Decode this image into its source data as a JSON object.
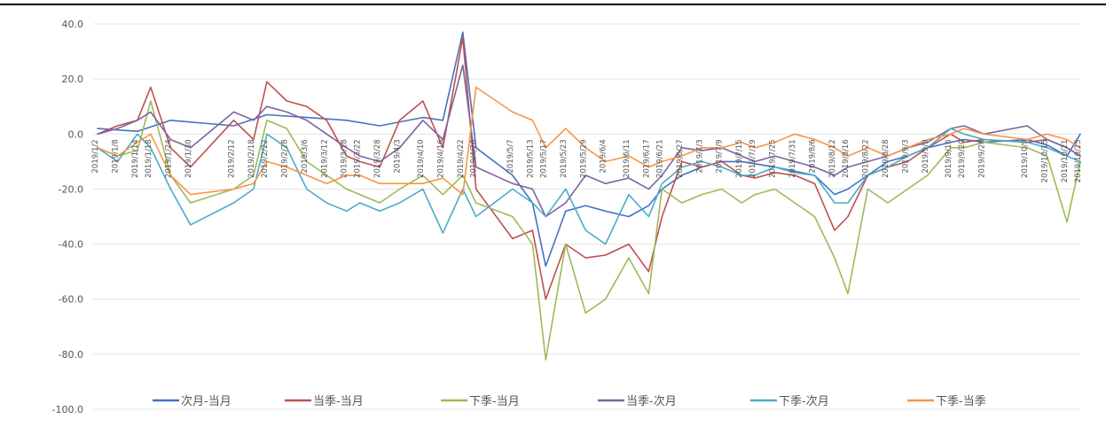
{
  "chart_data": {
    "type": "line",
    "title": "",
    "xlabel": "",
    "ylabel": "",
    "ylim": [
      -100,
      40
    ],
    "yticks": [
      "40.0",
      "20.0",
      "0.0",
      "-20.0",
      "-40.0",
      "-60.0",
      "-80.0",
      "-100.0"
    ],
    "ytick_values": [
      40,
      20,
      0,
      -20,
      -40,
      -60,
      -80,
      -100
    ],
    "grid": "horizontal",
    "legend_position": "bottom",
    "x_start": "2019/1/2",
    "x_end": "2019/10/25",
    "x_labels": [
      "2019/1/2",
      "2019/1/8",
      "2019/1/14",
      "2019/1/18",
      "2019/1/24",
      "2019/1/30",
      "2019/2/12",
      "2019/2/18",
      "2019/2/22",
      "2019/2/28",
      "2019/3/6",
      "2019/3/12",
      "2019/3/18",
      "2019/3/22",
      "2019/3/28",
      "2019/4/3",
      "2019/4/10",
      "2019/4/16",
      "2019/4/22",
      "2019/4/26",
      "2019/5/7",
      "2019/5/13",
      "2019/5/17",
      "2019/5/23",
      "2019/5/29",
      "2019/6/4",
      "2019/6/11",
      "2019/6/17",
      "2019/6/21",
      "2019/6/27",
      "2019/7/3",
      "2019/7/9",
      "2019/7/15",
      "2019/7/19",
      "2019/7/25",
      "2019/7/31",
      "2019/8/6",
      "2019/8/12",
      "2019/8/16",
      "2019/8/22",
      "2019/8/28",
      "2019/9/3",
      "2019/9/9",
      "2019/9/16",
      "2019/9/20",
      "2019/9/26",
      "2019/10/9",
      "2019/10/15",
      "2019/10/21",
      "2019/10/25"
    ],
    "series": [
      {
        "name": "次月-当月",
        "color": "#4472c4",
        "x": [
          "2019/1/2",
          "2019/1/14",
          "2019/1/24",
          "2019/2/12",
          "2019/2/22",
          "2019/3/6",
          "2019/3/18",
          "2019/3/28",
          "2019/4/10",
          "2019/4/16",
          "2019/4/22",
          "2019/4/26",
          "2019/5/7",
          "2019/5/13",
          "2019/5/17",
          "2019/5/23",
          "2019/5/29",
          "2019/6/4",
          "2019/6/11",
          "2019/6/17",
          "2019/6/21",
          "2019/6/27",
          "2019/7/3",
          "2019/7/9",
          "2019/7/15",
          "2019/7/25",
          "2019/8/6",
          "2019/8/12",
          "2019/8/16",
          "2019/8/22",
          "2019/8/28",
          "2019/9/3",
          "2019/9/9",
          "2019/9/16",
          "2019/9/20",
          "2019/9/26",
          "2019/10/9",
          "2019/10/15",
          "2019/10/21",
          "2019/10/25"
        ],
        "values": [
          2,
          1,
          5,
          3,
          7,
          6,
          5,
          3,
          6,
          5,
          37,
          -5,
          -15,
          -25,
          -48,
          -28,
          -26,
          -28,
          -30,
          -26,
          -20,
          -15,
          -12,
          -10,
          -10,
          -12,
          -15,
          -22,
          -20,
          -15,
          -10,
          -8,
          -5,
          -3,
          -2,
          -3,
          -2,
          -4,
          -8,
          0
        ]
      },
      {
        "name": "当季-当月",
        "color": "#c0504d",
        "x": [
          "2019/1/2",
          "2019/1/8",
          "2019/1/14",
          "2019/1/18",
          "2019/1/24",
          "2019/1/30",
          "2019/2/12",
          "2019/2/18",
          "2019/2/22",
          "2019/2/28",
          "2019/3/6",
          "2019/3/12",
          "2019/3/18",
          "2019/3/22",
          "2019/3/28",
          "2019/4/3",
          "2019/4/10",
          "2019/4/16",
          "2019/4/22",
          "2019/4/26",
          "2019/5/7",
          "2019/5/13",
          "2019/5/17",
          "2019/5/23",
          "2019/5/29",
          "2019/6/4",
          "2019/6/11",
          "2019/6/17",
          "2019/6/21",
          "2019/6/27",
          "2019/7/3",
          "2019/7/9",
          "2019/7/15",
          "2019/7/19",
          "2019/7/25",
          "2019/7/31",
          "2019/8/6",
          "2019/8/12",
          "2019/8/16",
          "2019/8/22",
          "2019/8/28",
          "2019/9/3",
          "2019/9/9",
          "2019/9/16",
          "2019/9/20",
          "2019/9/26",
          "2019/10/9",
          "2019/10/15",
          "2019/10/21",
          "2019/10/25"
        ],
        "values": [
          0,
          3,
          5,
          17,
          -5,
          -12,
          5,
          -2,
          19,
          12,
          10,
          5,
          -8,
          -10,
          -12,
          5,
          12,
          -5,
          35,
          -20,
          -38,
          -35,
          -60,
          -40,
          -45,
          -44,
          -40,
          -50,
          -30,
          -10,
          -12,
          -10,
          -15,
          -16,
          -14,
          -15,
          -18,
          -35,
          -30,
          -15,
          -12,
          -10,
          -5,
          0,
          -3,
          -2,
          -3,
          -2,
          -5,
          -8
        ]
      },
      {
        "name": "下季-当月",
        "color": "#9bbb59",
        "x": [
          "2019/1/2",
          "2019/1/8",
          "2019/1/14",
          "2019/1/18",
          "2019/1/24",
          "2019/1/30",
          "2019/2/12",
          "2019/2/18",
          "2019/2/22",
          "2019/2/28",
          "2019/3/6",
          "2019/3/12",
          "2019/3/18",
          "2019/3/22",
          "2019/3/28",
          "2019/4/3",
          "2019/4/10",
          "2019/4/16",
          "2019/4/22",
          "2019/4/26",
          "2019/5/7",
          "2019/5/13",
          "2019/5/17",
          "2019/5/23",
          "2019/5/29",
          "2019/6/4",
          "2019/6/11",
          "2019/6/17",
          "2019/6/21",
          "2019/6/27",
          "2019/7/3",
          "2019/7/9",
          "2019/7/15",
          "2019/7/19",
          "2019/7/25",
          "2019/7/31",
          "2019/8/6",
          "2019/8/12",
          "2019/8/16",
          "2019/8/22",
          "2019/8/28",
          "2019/9/3",
          "2019/9/9",
          "2019/9/16",
          "2019/9/20",
          "2019/9/26",
          "2019/10/9",
          "2019/10/15",
          "2019/10/21",
          "2019/10/25"
        ],
        "values": [
          -5,
          -8,
          -6,
          12,
          -15,
          -25,
          -20,
          -15,
          5,
          2,
          -10,
          -15,
          -20,
          -22,
          -25,
          -20,
          -15,
          -22,
          -15,
          -25,
          -30,
          -40,
          -82,
          -40,
          -65,
          -60,
          -45,
          -58,
          -20,
          -25,
          -22,
          -20,
          -25,
          -22,
          -20,
          -25,
          -30,
          -45,
          -58,
          -20,
          -25,
          -20,
          -15,
          -5,
          -5,
          -3,
          -5,
          -8,
          -32,
          -10
        ]
      },
      {
        "name": "当季-次月",
        "color": "#8064a2",
        "x": [
          "2019/1/2",
          "2019/1/8",
          "2019/1/14",
          "2019/1/18",
          "2019/1/24",
          "2019/1/30",
          "2019/2/12",
          "2019/2/18",
          "2019/2/22",
          "2019/2/28",
          "2019/3/6",
          "2019/3/12",
          "2019/3/18",
          "2019/3/22",
          "2019/3/28",
          "2019/4/3",
          "2019/4/10",
          "2019/4/16",
          "2019/4/22",
          "2019/4/26",
          "2019/5/7",
          "2019/5/13",
          "2019/5/17",
          "2019/5/23",
          "2019/5/29",
          "2019/6/4",
          "2019/6/11",
          "2019/6/17",
          "2019/6/21",
          "2019/6/27",
          "2019/7/3",
          "2019/7/9",
          "2019/7/15",
          "2019/7/19",
          "2019/7/25",
          "2019/7/31",
          "2019/8/6",
          "2019/8/12",
          "2019/8/16",
          "2019/8/22",
          "2019/8/28",
          "2019/9/3",
          "2019/9/9",
          "2019/9/16",
          "2019/9/20",
          "2019/9/26",
          "2019/10/9",
          "2019/10/15",
          "2019/10/21",
          "2019/10/25"
        ],
        "values": [
          0,
          2,
          5,
          8,
          -2,
          -5,
          8,
          5,
          10,
          8,
          5,
          0,
          -5,
          -8,
          -10,
          -5,
          5,
          -2,
          25,
          -12,
          -18,
          -20,
          -30,
          -25,
          -15,
          -18,
          -16,
          -20,
          -15,
          -5,
          -6,
          -5,
          -8,
          -10,
          -8,
          -10,
          -12,
          -15,
          -12,
          -10,
          -8,
          -5,
          -3,
          2,
          3,
          0,
          3,
          -2,
          -5,
          -8
        ]
      },
      {
        "name": "下季-次月",
        "color": "#4bacc6",
        "x": [
          "2019/1/2",
          "2019/1/8",
          "2019/1/14",
          "2019/1/18",
          "2019/1/24",
          "2019/1/30",
          "2019/2/12",
          "2019/2/18",
          "2019/2/22",
          "2019/2/28",
          "2019/3/6",
          "2019/3/12",
          "2019/3/18",
          "2019/3/22",
          "2019/3/28",
          "2019/4/3",
          "2019/4/10",
          "2019/4/16",
          "2019/4/22",
          "2019/4/26",
          "2019/5/7",
          "2019/5/13",
          "2019/5/17",
          "2019/5/23",
          "2019/5/29",
          "2019/6/4",
          "2019/6/11",
          "2019/6/17",
          "2019/6/21",
          "2019/6/27",
          "2019/7/3",
          "2019/7/9",
          "2019/7/15",
          "2019/7/19",
          "2019/7/25",
          "2019/7/31",
          "2019/8/6",
          "2019/8/12",
          "2019/8/16",
          "2019/8/22",
          "2019/8/28",
          "2019/9/3",
          "2019/9/9",
          "2019/9/16",
          "2019/9/20",
          "2019/9/26",
          "2019/10/9",
          "2019/10/15",
          "2019/10/21",
          "2019/10/25"
        ],
        "values": [
          -5,
          -10,
          0,
          -5,
          -20,
          -33,
          -25,
          -20,
          0,
          -5,
          -20,
          -25,
          -28,
          -25,
          -28,
          -25,
          -20,
          -36,
          -20,
          -30,
          -20,
          -25,
          -30,
          -20,
          -35,
          -40,
          -22,
          -30,
          -18,
          -12,
          -10,
          -12,
          -15,
          -15,
          -12,
          -14,
          -15,
          -25,
          -25,
          -15,
          -12,
          -8,
          -5,
          2,
          0,
          -2,
          -3,
          -5,
          -8,
          -10
        ]
      },
      {
        "name": "下季-当季",
        "color": "#f79646",
        "x": [
          "2019/1/2",
          "2019/1/8",
          "2019/1/14",
          "2019/1/18",
          "2019/1/24",
          "2019/1/30",
          "2019/2/12",
          "2019/2/18",
          "2019/2/22",
          "2019/2/28",
          "2019/3/6",
          "2019/3/12",
          "2019/3/18",
          "2019/3/22",
          "2019/3/28",
          "2019/4/3",
          "2019/4/10",
          "2019/4/16",
          "2019/4/22",
          "2019/4/26",
          "2019/5/7",
          "2019/5/13",
          "2019/5/17",
          "2019/5/23",
          "2019/5/29",
          "2019/6/4",
          "2019/6/11",
          "2019/6/17",
          "2019/6/21",
          "2019/6/27",
          "2019/7/3",
          "2019/7/9",
          "2019/7/15",
          "2019/7/19",
          "2019/7/25",
          "2019/7/31",
          "2019/8/6",
          "2019/8/12",
          "2019/8/16",
          "2019/8/22",
          "2019/8/28",
          "2019/9/3",
          "2019/9/9",
          "2019/9/16",
          "2019/9/20",
          "2019/9/26",
          "2019/10/9",
          "2019/10/15",
          "2019/10/21",
          "2019/10/25"
        ],
        "values": [
          -5,
          -8,
          -3,
          0,
          -15,
          -22,
          -20,
          -18,
          -10,
          -12,
          -15,
          -18,
          -15,
          -15,
          -18,
          -18,
          -18,
          -16,
          -22,
          17,
          8,
          5,
          -5,
          2,
          -5,
          -10,
          -8,
          -12,
          -10,
          -8,
          -5,
          -5,
          -3,
          -5,
          -3,
          0,
          -2,
          -5,
          -8,
          -5,
          -8,
          -5,
          -2,
          0,
          2,
          0,
          -2,
          0,
          -2,
          -5
        ]
      }
    ]
  }
}
